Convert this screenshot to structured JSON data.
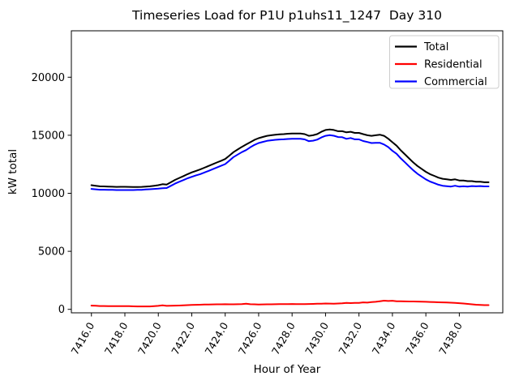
{
  "chart_data": {
    "type": "line",
    "title": "Timeseries Load for P1U p1uhs11_1247  Day 310",
    "xlabel": "Hour of Year",
    "ylabel": "kW total",
    "xlim": [
      7414.8,
      7440.6
    ],
    "ylim": [
      -300,
      24000
    ],
    "xticks": [
      7416,
      7418,
      7420,
      7422,
      7424,
      7426,
      7428,
      7430,
      7432,
      7434,
      7436,
      7438
    ],
    "xtick_labels": [
      "7416.0",
      "7418.0",
      "7420.0",
      "7422.0",
      "7424.0",
      "7426.0",
      "7428.0",
      "7430.0",
      "7432.0",
      "7434.0",
      "7436.0",
      "7438.0"
    ],
    "xtick_rotation": 60,
    "yticks": [
      0,
      5000,
      10000,
      15000,
      20000
    ],
    "ytick_labels": [
      "0",
      "5000",
      "10000",
      "15000",
      "20000"
    ],
    "grid": false,
    "legend": {
      "position": "upper right",
      "entries": [
        "Total",
        "Residential",
        "Commercial"
      ]
    },
    "colors": {
      "total": "#000000",
      "residential": "#ff0000",
      "commercial": "#0000ff",
      "legend_border": "#cccccc",
      "background": "#ffffff"
    },
    "x": [
      7416.0,
      7416.25,
      7416.5,
      7416.75,
      7417.0,
      7417.25,
      7417.5,
      7417.75,
      7418.0,
      7418.25,
      7418.5,
      7418.75,
      7419.0,
      7419.25,
      7419.5,
      7419.75,
      7420.0,
      7420.25,
      7420.5,
      7420.75,
      7421.0,
      7421.25,
      7421.5,
      7421.75,
      7422.0,
      7422.25,
      7422.5,
      7422.75,
      7423.0,
      7423.25,
      7423.5,
      7423.75,
      7424.0,
      7424.25,
      7424.5,
      7424.75,
      7425.0,
      7425.25,
      7425.5,
      7425.75,
      7426.0,
      7426.25,
      7426.5,
      7426.75,
      7427.0,
      7427.25,
      7427.5,
      7427.75,
      7428.0,
      7428.25,
      7428.5,
      7428.75,
      7429.0,
      7429.25,
      7429.5,
      7429.75,
      7430.0,
      7430.25,
      7430.5,
      7430.75,
      7431.0,
      7431.25,
      7431.5,
      7431.75,
      7432.0,
      7432.25,
      7432.5,
      7432.75,
      7433.0,
      7433.25,
      7433.5,
      7433.75,
      7434.0,
      7434.25,
      7434.5,
      7434.75,
      7435.0,
      7435.25,
      7435.5,
      7435.75,
      7436.0,
      7436.25,
      7436.5,
      7436.75,
      7437.0,
      7437.25,
      7437.5,
      7437.75,
      7438.0,
      7438.25,
      7438.5,
      7438.75,
      7439.0,
      7439.25,
      7439.5,
      7439.75
    ],
    "series": [
      {
        "name": "Total",
        "color": "#000000",
        "values": [
          10700,
          10650,
          10600,
          10590,
          10580,
          10565,
          10550,
          10555,
          10560,
          10550,
          10540,
          10545,
          10550,
          10575,
          10600,
          10650,
          10700,
          10780,
          10750,
          10950,
          11150,
          11320,
          11480,
          11650,
          11800,
          11930,
          12050,
          12200,
          12350,
          12500,
          12650,
          12800,
          12950,
          13250,
          13550,
          13780,
          14000,
          14200,
          14400,
          14600,
          14750,
          14850,
          14950,
          15000,
          15050,
          15080,
          15100,
          15130,
          15150,
          15150,
          15150,
          15100,
          14950,
          15000,
          15100,
          15300,
          15450,
          15500,
          15450,
          15350,
          15350,
          15250,
          15300,
          15200,
          15200,
          15100,
          15000,
          14950,
          15000,
          15050,
          14950,
          14700,
          14400,
          14100,
          13700,
          13350,
          13000,
          12650,
          12350,
          12100,
          11850,
          11650,
          11500,
          11350,
          11250,
          11200,
          11150,
          11200,
          11100,
          11100,
          11050,
          11050,
          11000,
          11000,
          10950,
          10950
        ]
      },
      {
        "name": "Residential",
        "color": "#ff0000",
        "values": [
          320,
          305,
          290,
          285,
          280,
          275,
          270,
          275,
          280,
          270,
          260,
          255,
          250,
          250,
          250,
          275,
          300,
          340,
          300,
          310,
          320,
          330,
          340,
          360,
          380,
          390,
          400,
          410,
          420,
          425,
          430,
          435,
          440,
          435,
          430,
          440,
          450,
          480,
          440,
          430,
          420,
          425,
          430,
          435,
          440,
          445,
          450,
          455,
          460,
          455,
          450,
          455,
          460,
          470,
          480,
          490,
          500,
          495,
          490,
          505,
          520,
          560,
          540,
          550,
          560,
          600,
          580,
          620,
          650,
          700,
          750,
          720,
          740,
          700,
          690,
          685,
          680,
          675,
          670,
          660,
          650,
          635,
          620,
          610,
          600,
          585,
          570,
          550,
          530,
          500,
          470,
          430,
          400,
          380,
          360,
          360
        ]
      },
      {
        "name": "Commercial",
        "color": "#0000ff",
        "values": [
          10380,
          10345,
          10310,
          10305,
          10300,
          10290,
          10280,
          10280,
          10280,
          10280,
          10280,
          10290,
          10300,
          10325,
          10350,
          10375,
          10400,
          10440,
          10450,
          10640,
          10830,
          10990,
          11140,
          11290,
          11420,
          11540,
          11650,
          11790,
          11930,
          12075,
          12220,
          12365,
          12510,
          12815,
          13120,
          13340,
          13550,
          13720,
          13960,
          14170,
          14330,
          14425,
          14520,
          14565,
          14610,
          14635,
          14650,
          14675,
          14690,
          14695,
          14700,
          14645,
          14490,
          14530,
          14620,
          14810,
          14950,
          15005,
          14960,
          14845,
          14830,
          14690,
          14760,
          14650,
          14640,
          14500,
          14420,
          14330,
          14350,
          14350,
          14200,
          13980,
          13660,
          13400,
          13010,
          12665,
          12320,
          11975,
          11680,
          11440,
          11200,
          11015,
          10880,
          10740,
          10650,
          10615,
          10580,
          10650,
          10570,
          10600,
          10580,
          10620,
          10600,
          10620,
          10590,
          10590
        ]
      }
    ]
  }
}
